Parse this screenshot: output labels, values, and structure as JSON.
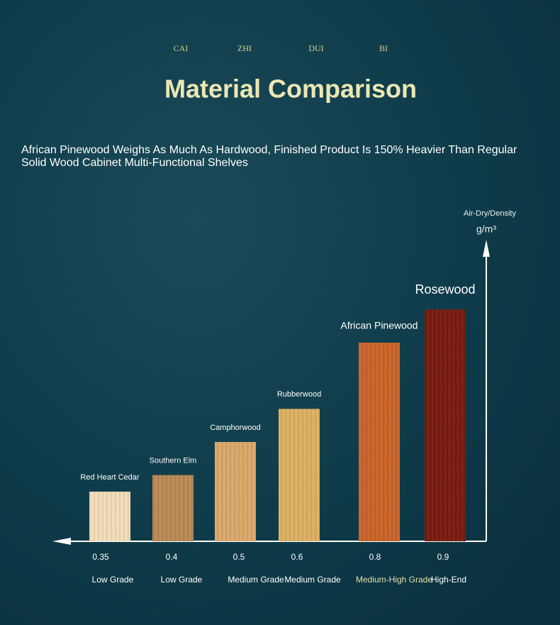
{
  "header": {
    "pinyin": [
      "CAI",
      "ZHI",
      "DUI",
      "BI"
    ],
    "title": "Material Comparison",
    "subtitle": "African Pinewood Weighs As Much As Hardwood, Finished Product Is 150% Heavier Than Regular Solid Wood Cabinet Multi-Functional Shelves"
  },
  "chart_data": {
    "type": "bar",
    "y_label": "Air-Dry/Density",
    "y_unit": "g/m³",
    "categories": [
      "Red Heart Cedar",
      "Southern Elm",
      "Camphorwood",
      "Rubberwood",
      "African Pinewood",
      "Rosewood"
    ],
    "values": [
      0.35,
      0.4,
      0.5,
      0.6,
      0.8,
      0.9
    ],
    "grades": [
      "Low Grade",
      "Low Grade",
      "Medium Grade",
      "Medium Grade",
      "Medium-High Grade",
      "High-End"
    ],
    "colors": [
      "#f1dcb8",
      "#b98a55",
      "#d9a86a",
      "#dcb062",
      "#c9642a",
      "#7a1c10"
    ],
    "ylim": [
      0.2,
      1.1
    ]
  }
}
